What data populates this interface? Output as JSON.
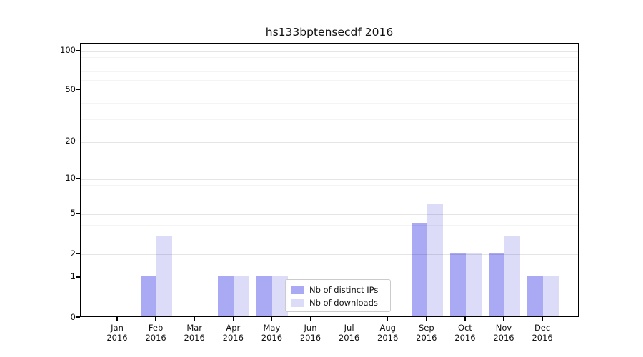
{
  "chart_data": {
    "type": "bar",
    "title": "hs133bptensecdf 2016",
    "categories": [
      "Jan",
      "Feb",
      "Mar",
      "Apr",
      "May",
      "Jun",
      "Jul",
      "Aug",
      "Sep",
      "Oct",
      "Nov",
      "Dec"
    ],
    "x_year_label": "2016",
    "series": [
      {
        "name": "Nb of distinct IPs",
        "color": "#a9a9f4",
        "values": [
          0,
          1,
          0,
          1,
          1,
          0,
          0,
          0,
          4,
          2,
          2,
          1
        ]
      },
      {
        "name": "Nb of downloads",
        "color": "#dcdcf9",
        "values": [
          0,
          3,
          0,
          1,
          1,
          0,
          0,
          0,
          6,
          2,
          3,
          1
        ]
      }
    ],
    "y_scale": "log1p",
    "ylim": [
      0,
      114
    ],
    "y_tick_values": [
      0,
      1,
      2,
      5,
      10,
      20,
      50,
      100
    ],
    "y_tick_labels": [
      "0",
      "1",
      "2",
      "5",
      "10",
      "20",
      "50",
      "100"
    ],
    "y_minor_tick_values": [
      3,
      4,
      6,
      7,
      8,
      9,
      30,
      40,
      60,
      70,
      80,
      90
    ],
    "grid": true,
    "legend_position": "lower-center-inside"
  }
}
